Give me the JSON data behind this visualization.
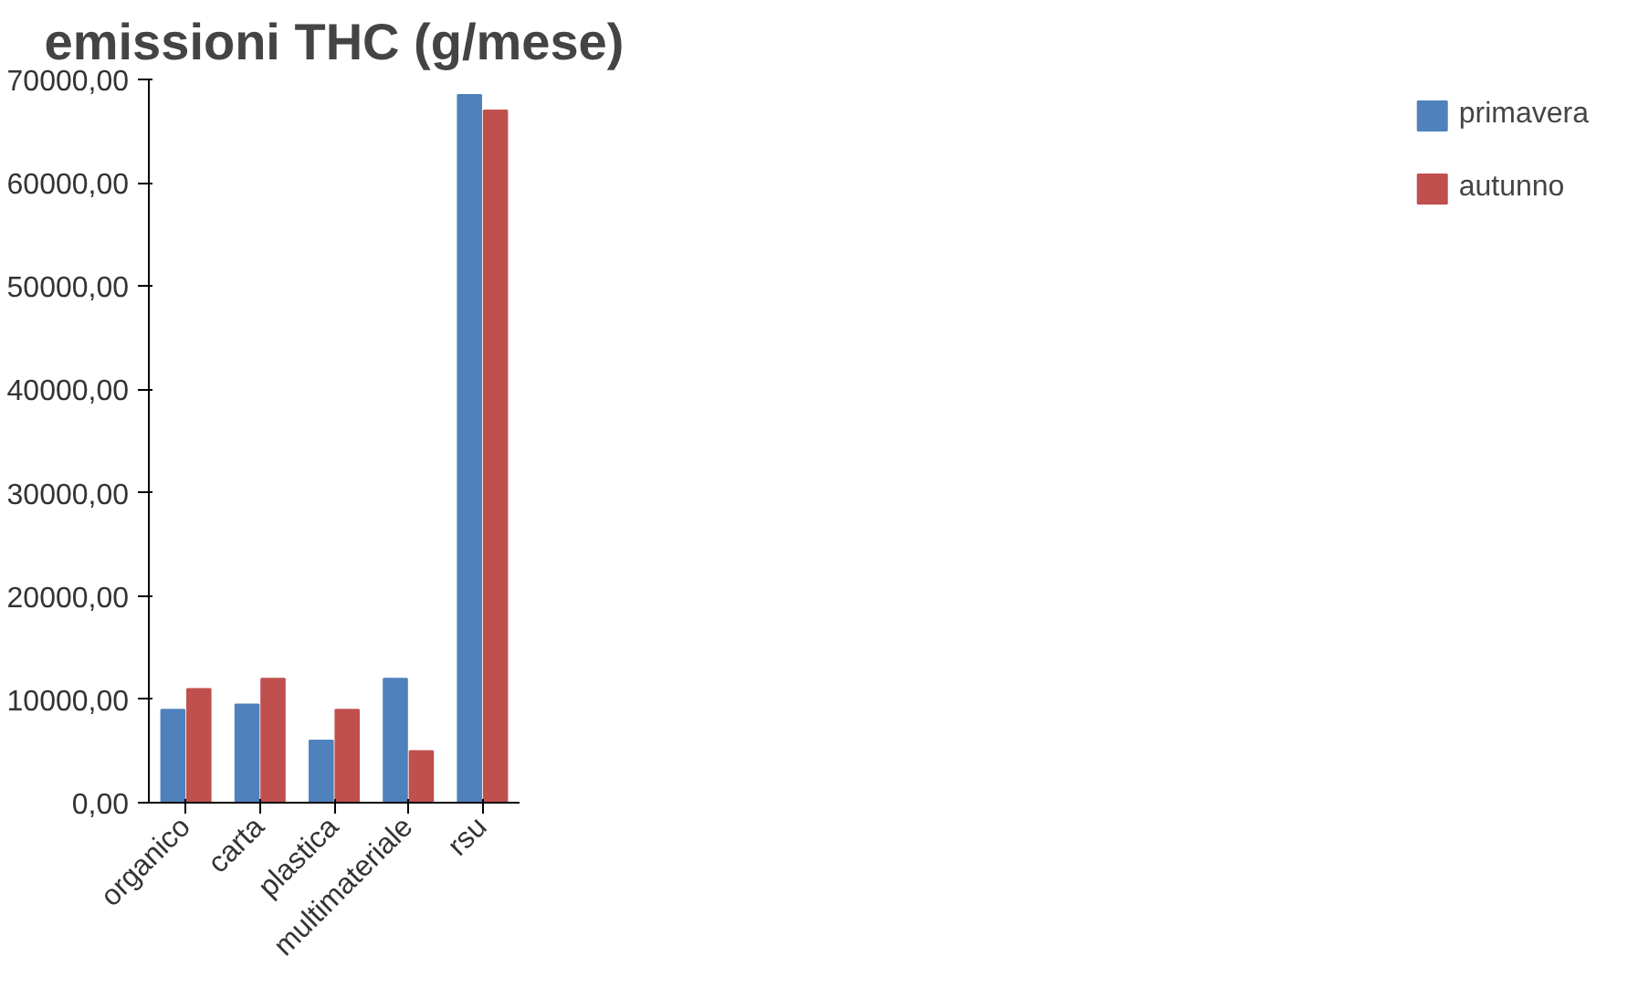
{
  "chart_data": {
    "type": "bar",
    "title": "emissioni THC (g/mese)",
    "categories": [
      "organico",
      "carta",
      "plastica",
      "multimateriale",
      "rsu"
    ],
    "series": [
      {
        "name": "primavera",
        "color": "#4f81bd",
        "values": [
          9000,
          9500,
          6000,
          12000,
          68500
        ]
      },
      {
        "name": "autunno",
        "color": "#c0504d",
        "values": [
          11000,
          12000,
          9000,
          5000,
          67000
        ]
      }
    ],
    "ylim": [
      0,
      70000
    ],
    "yticks": [
      {
        "value": 0,
        "label": "0,00"
      },
      {
        "value": 10000,
        "label": "10000,00"
      },
      {
        "value": 20000,
        "label": "20000,00"
      },
      {
        "value": 30000,
        "label": "30000,00"
      },
      {
        "value": 40000,
        "label": "40000,00"
      },
      {
        "value": 50000,
        "label": "50000,00"
      },
      {
        "value": 60000,
        "label": "60000,00"
      },
      {
        "value": 70000,
        "label": "70000,00"
      }
    ],
    "grid": false,
    "legend": "right"
  }
}
